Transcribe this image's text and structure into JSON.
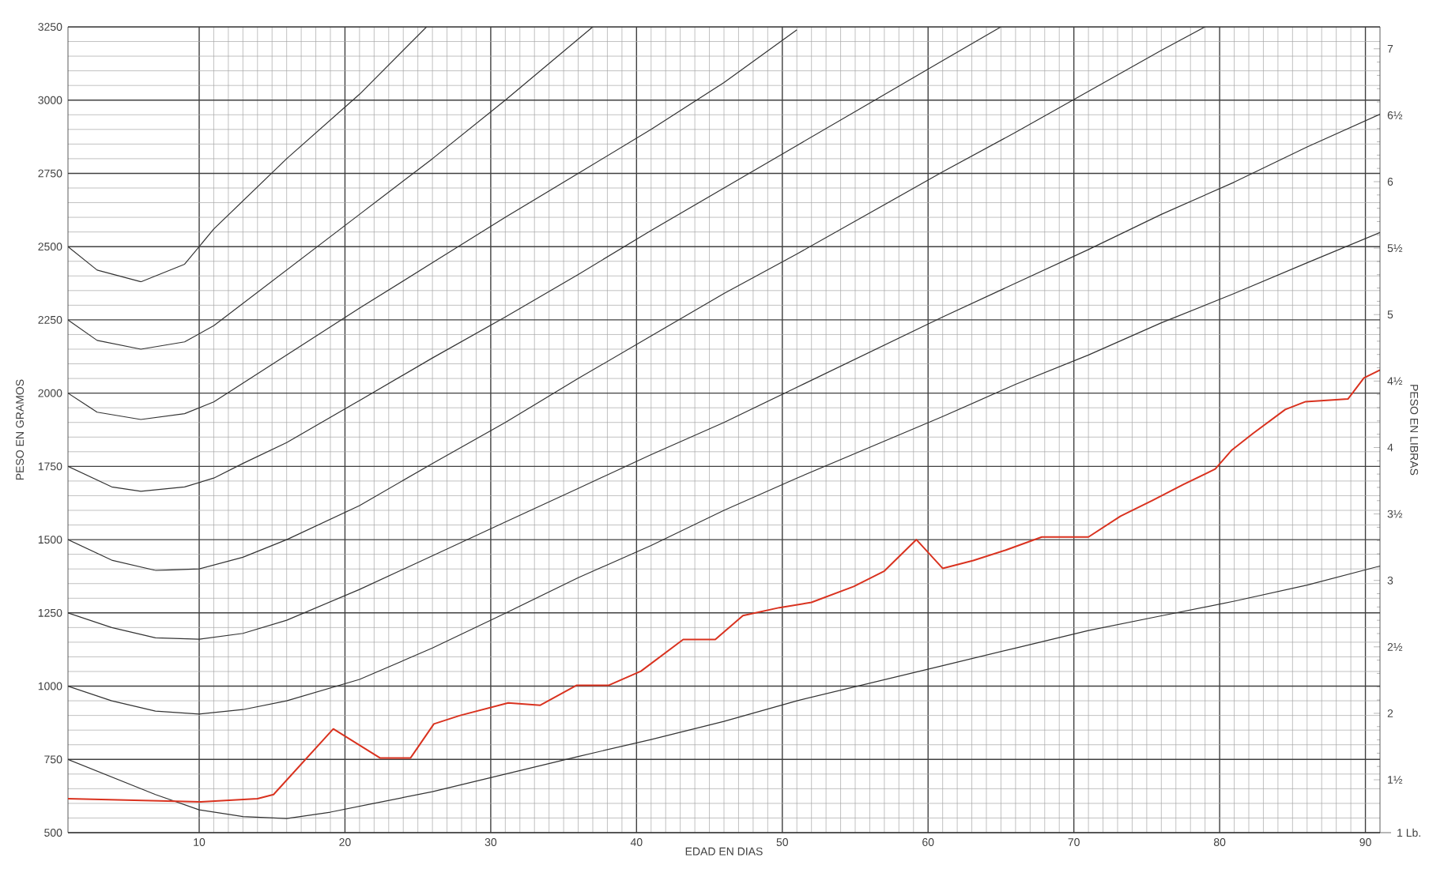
{
  "chart_data": {
    "type": "line",
    "xlabel": "EDAD EN DIAS",
    "ylabel": "PESO EN GRAMOS",
    "y2label": "PESO EN LIBRAS",
    "xlim": [
      1,
      91
    ],
    "ylim": [
      500,
      3250
    ],
    "y2lim": [
      1.102,
      7.165
    ],
    "xticks": [
      10,
      20,
      30,
      40,
      50,
      60,
      70,
      80,
      90
    ],
    "yticks": [
      500,
      750,
      1000,
      1250,
      1500,
      1750,
      2000,
      2250,
      2500,
      2750,
      3000,
      3250
    ],
    "y2ticks": [
      {
        "value": 1.5,
        "label": "1½"
      },
      2,
      {
        "value": 2.5,
        "label": "2½"
      },
      3,
      {
        "value": 3.5,
        "label": "3½"
      },
      4,
      {
        "value": 4.5,
        "label": "4½"
      },
      5,
      {
        "value": 5.5,
        "label": "5½"
      },
      6,
      {
        "value": 6.5,
        "label": "6½"
      },
      7
    ],
    "grid": true,
    "marker": "none",
    "line_style": "solid",
    "annotations": [
      "1 Lb."
    ],
    "series": [
      {
        "color": "#333333",
        "x": [
          1,
          3,
          6,
          9,
          11,
          16,
          21,
          25.6
        ],
        "values": [
          2500,
          2420,
          2380,
          2440,
          2560,
          2800,
          3020,
          3250
        ]
      },
      {
        "color": "#333333",
        "x": [
          1,
          3,
          6,
          9,
          11,
          16,
          21,
          26,
          31,
          37
        ],
        "values": [
          2250,
          2180,
          2150,
          2175,
          2230,
          2420,
          2610,
          2800,
          3000,
          3250
        ]
      },
      {
        "color": "#333333",
        "x": [
          1,
          3,
          6,
          9,
          11,
          16,
          21,
          26,
          31,
          36,
          41,
          46,
          51
        ],
        "values": [
          2000,
          1935,
          1910,
          1930,
          1970,
          2130,
          2290,
          2445,
          2600,
          2750,
          2900,
          3060,
          3240
        ]
      },
      {
        "color": "#333333",
        "x": [
          1,
          4,
          6,
          9,
          11,
          13,
          16,
          21,
          26,
          31,
          36,
          41,
          46,
          51,
          56,
          61,
          65
        ],
        "values": [
          1750,
          1680,
          1665,
          1680,
          1710,
          1760,
          1831,
          1975,
          2120,
          2260,
          2405,
          2555,
          2700,
          2845,
          2990,
          3135,
          3250
        ]
      },
      {
        "color": "#333333",
        "x": [
          1,
          4,
          7,
          10,
          13,
          16,
          21,
          26,
          31,
          36,
          41,
          46,
          51,
          56,
          61,
          66,
          71,
          76,
          79
        ],
        "values": [
          1500,
          1430,
          1395,
          1400,
          1440,
          1500,
          1616,
          1760,
          1900,
          2050,
          2195,
          2340,
          2475,
          2615,
          2755,
          2890,
          3030,
          3170,
          3250
        ]
      },
      {
        "color": "#333333",
        "x": [
          1,
          4,
          7,
          10,
          13,
          16,
          21,
          26,
          31,
          36,
          41,
          46,
          51,
          56,
          61,
          66,
          71,
          76,
          81,
          86,
          91
        ],
        "values": [
          1250,
          1200,
          1165,
          1160,
          1180,
          1225,
          1330,
          1445,
          1560,
          1675,
          1790,
          1900,
          2020,
          2140,
          2260,
          2375,
          2490,
          2610,
          2720,
          2840,
          2952
        ]
      },
      {
        "color": "#333333",
        "x": [
          1,
          4,
          7,
          10,
          13,
          16,
          21,
          26,
          31,
          36,
          41,
          46,
          51,
          56,
          61,
          66,
          71,
          76,
          81,
          86,
          91
        ],
        "values": [
          1000,
          950,
          915,
          905,
          920,
          950,
          1023,
          1130,
          1249,
          1370,
          1480,
          1600,
          1710,
          1815,
          1920,
          2030,
          2130,
          2240,
          2340,
          2445,
          2548
        ]
      },
      {
        "color": "#333333",
        "x": [
          1,
          4,
          7,
          10,
          13,
          16,
          19,
          22,
          26,
          31,
          36,
          41,
          46,
          51,
          56,
          61,
          66,
          71,
          76,
          81,
          86,
          91
        ],
        "values": [
          750,
          690,
          630,
          578,
          555,
          548,
          570,
          600,
          640,
          700,
          760,
          818,
          880,
          950,
          1010,
          1070,
          1130,
          1190,
          1240,
          1290,
          1345,
          1410
        ]
      },
      {
        "color": "#d9321f",
        "x": [
          1,
          10.1,
          14,
          15.1,
          19.2,
          22.4,
          24.5,
          26.1,
          27.9,
          31.2,
          33.4,
          35.9,
          38.1,
          40.3,
          43.2,
          45.4,
          47.3,
          49.8,
          52,
          54.9,
          57,
          59.2,
          61,
          63.1,
          65.3,
          67.8,
          71,
          73.2,
          75.4,
          77.5,
          79.7,
          80.8,
          82.3,
          84.5,
          85.9,
          88.8,
          89.9,
          91
        ],
        "values": [
          616,
          605,
          616,
          630,
          854,
          755,
          755,
          871,
          900,
          943,
          935,
          1003,
          1003,
          1051,
          1159,
          1159,
          1241,
          1268,
          1286,
          1340,
          1393,
          1500,
          1402,
          1429,
          1464,
          1509,
          1509,
          1580,
          1634,
          1688,
          1741,
          1804,
          1863,
          1944,
          1971,
          1980,
          2052,
          2079
        ]
      }
    ]
  }
}
